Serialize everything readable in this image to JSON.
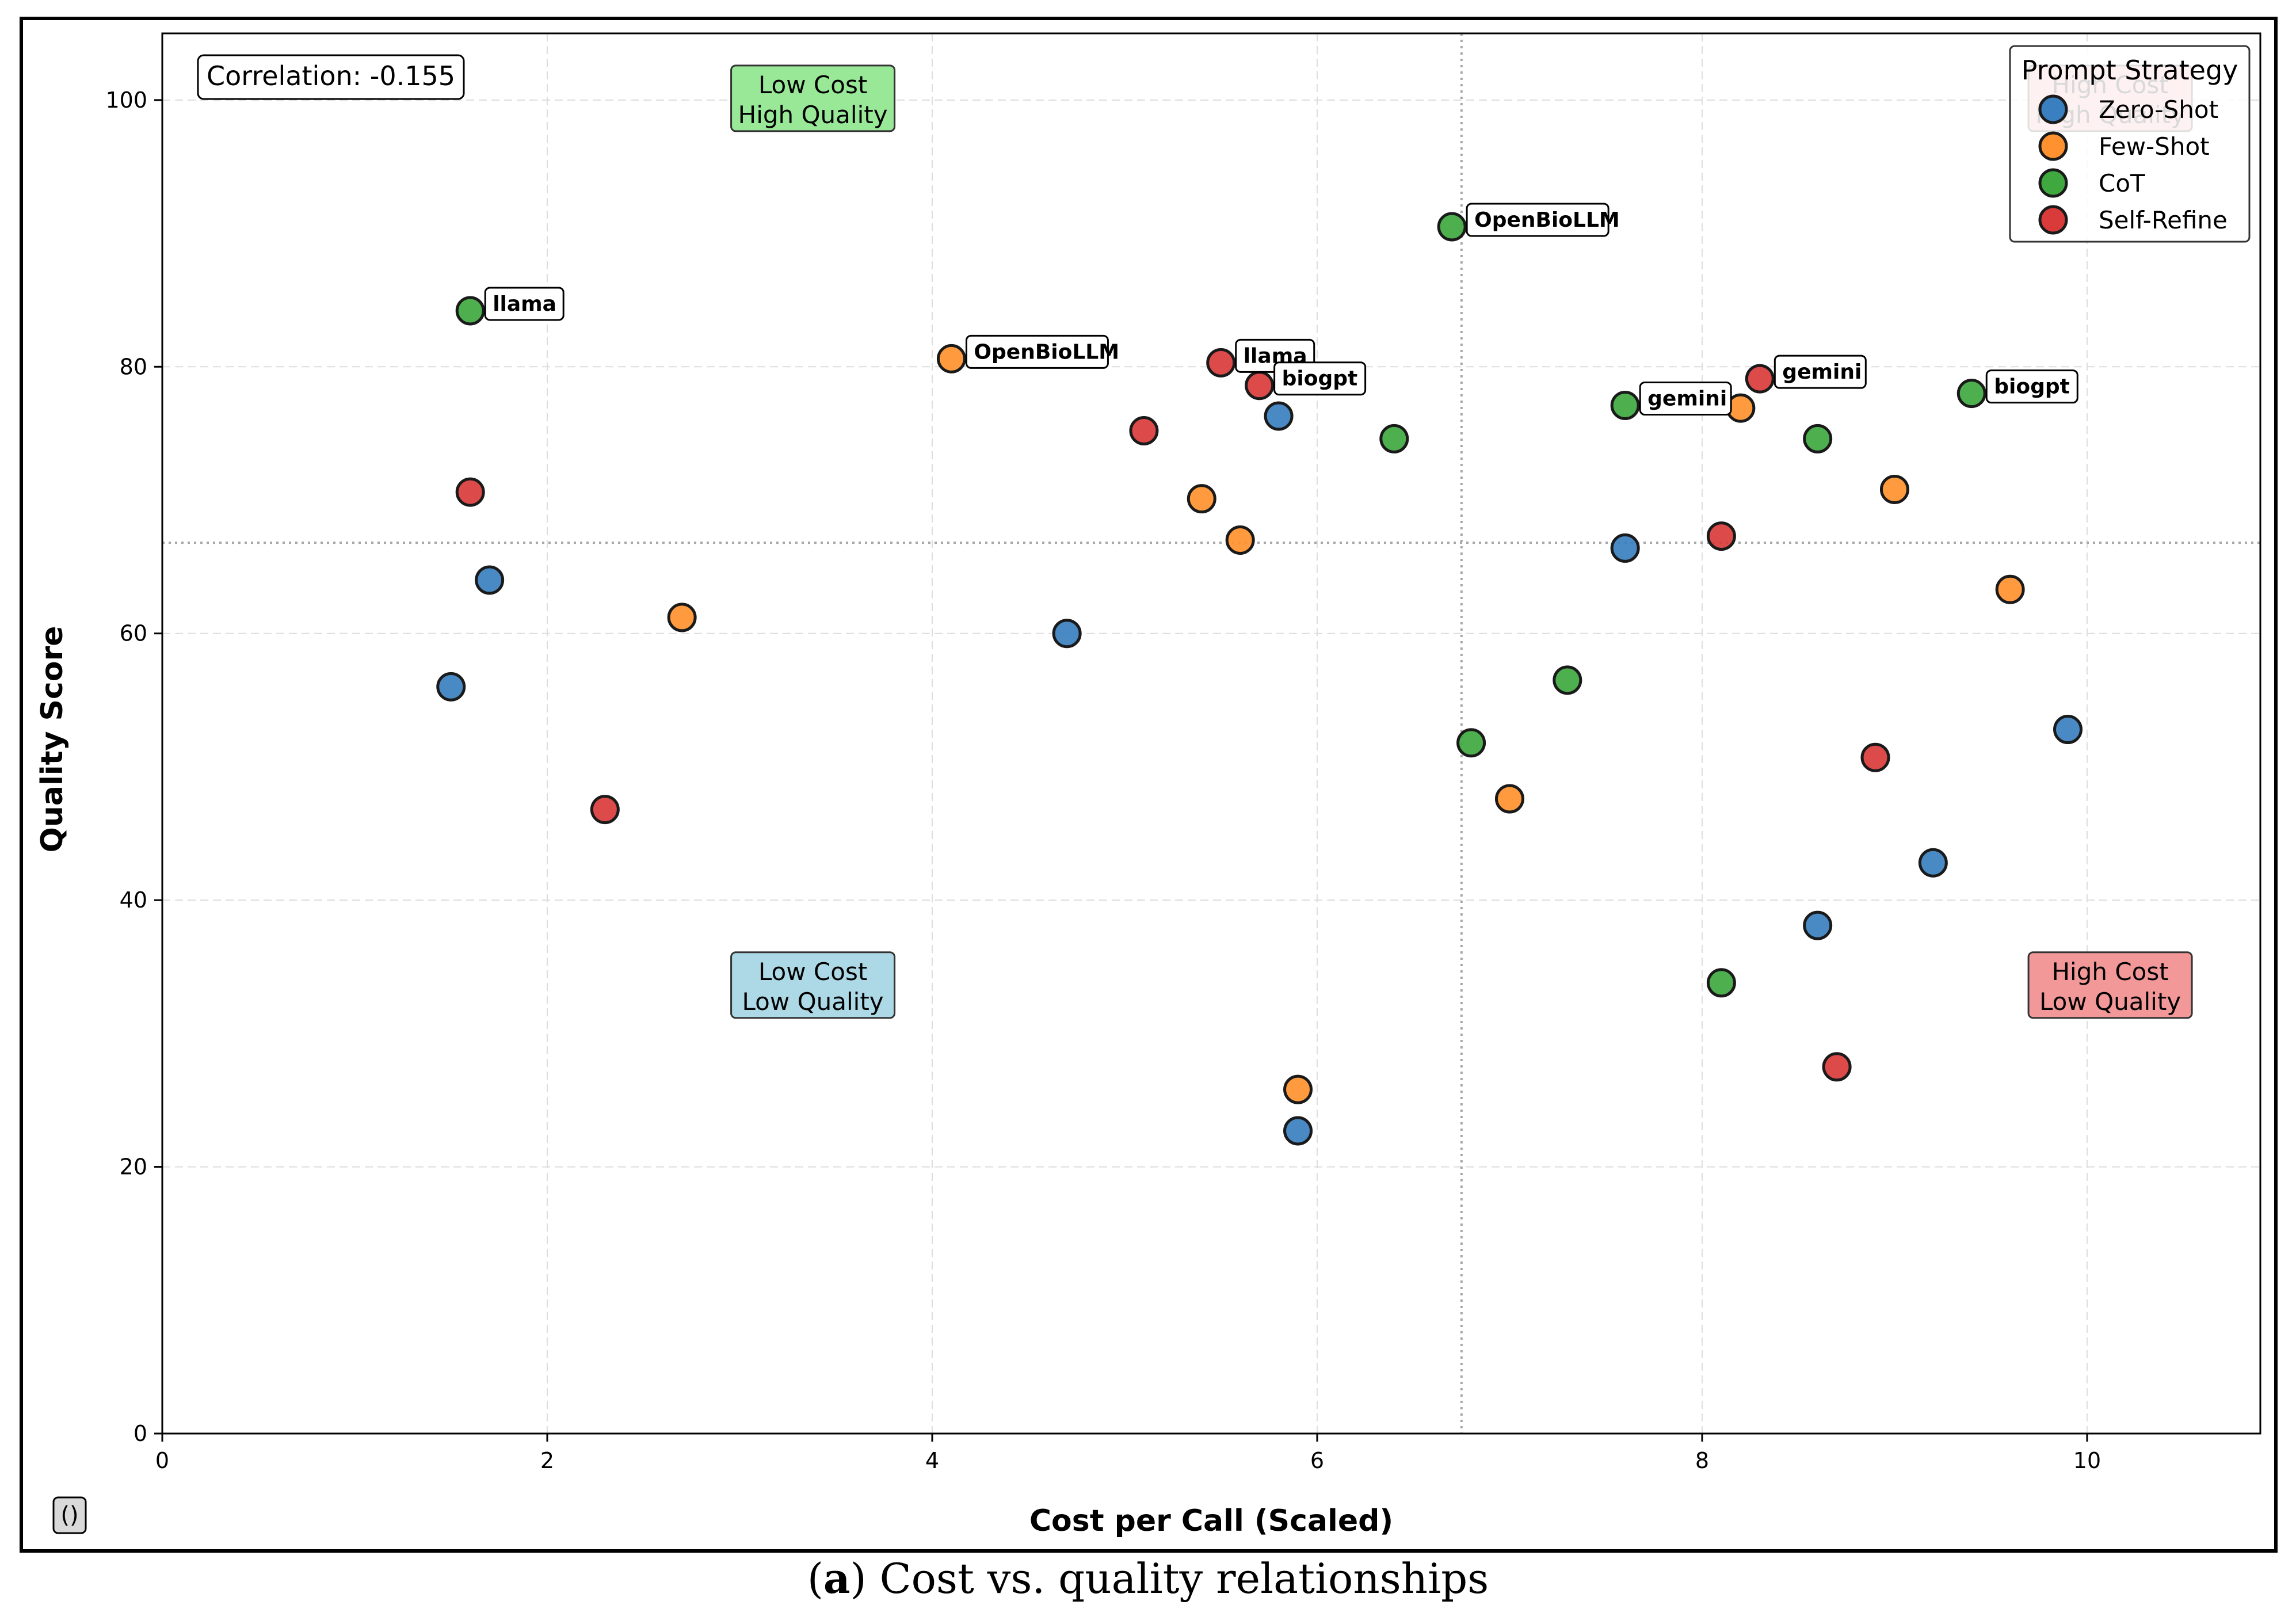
{
  "chart_data": {
    "type": "scatter",
    "xlabel": "Cost per Call (Scaled)",
    "ylabel": "Quality Score",
    "xlim": [
      0,
      10.9
    ],
    "ylim": [
      0,
      105
    ],
    "x_ticks": [
      0,
      2,
      4,
      6,
      8,
      10
    ],
    "y_ticks": [
      0,
      20,
      40,
      60,
      80,
      100
    ],
    "x_tick_labels": [
      "0",
      "2",
      "4",
      "6",
      "8",
      "10"
    ],
    "y_tick_labels": [
      "0",
      "20",
      "40",
      "60",
      "80",
      "100"
    ],
    "grid": true,
    "correlation_label": "Correlation: -0.155",
    "reference_lines": {
      "x": 6.75,
      "y": 66.8
    },
    "quadrant_labels": [
      {
        "line1": "Low Cost",
        "line2": "High Quality",
        "x": 3.38,
        "y": 100,
        "color": "#98e898"
      },
      {
        "line1": "High Cost",
        "line2": "High Quality",
        "x": 10.12,
        "y": 100,
        "color": "#f4a0a0"
      },
      {
        "line1": "Low Cost",
        "line2": "Low Quality",
        "x": 3.38,
        "y": 33.5,
        "color": "#add8e6"
      },
      {
        "line1": "High Cost",
        "line2": "Low Quality",
        "x": 10.12,
        "y": 33.5,
        "color": "#f29898"
      }
    ],
    "legend": {
      "title": "Prompt Strategy",
      "position": "top-right",
      "entries": [
        {
          "name": "Zero-Shot",
          "color": "#3a7fbf"
        },
        {
          "name": "Few-Shot",
          "color": "#ff922e"
        },
        {
          "name": "CoT",
          "color": "#3fa83f"
        },
        {
          "name": "Self-Refine",
          "color": "#d93b3b"
        }
      ]
    },
    "series": [
      {
        "name": "Zero-Shot",
        "color": "#3a7fbf",
        "points": [
          {
            "x": 1.5,
            "y": 56.0
          },
          {
            "x": 1.7,
            "y": 64.0
          },
          {
            "x": 4.7,
            "y": 60.0
          },
          {
            "x": 5.8,
            "y": 76.3
          },
          {
            "x": 5.9,
            "y": 22.7
          },
          {
            "x": 7.6,
            "y": 66.4
          },
          {
            "x": 8.6,
            "y": 38.1
          },
          {
            "x": 9.2,
            "y": 42.8
          },
          {
            "x": 9.9,
            "y": 52.8
          }
        ]
      },
      {
        "name": "Few-Shot",
        "color": "#ff922e",
        "points": [
          {
            "x": 2.7,
            "y": 61.2
          },
          {
            "x": 4.1,
            "y": 80.6,
            "label": "OpenBioLLM"
          },
          {
            "x": 5.4,
            "y": 70.1
          },
          {
            "x": 5.6,
            "y": 67.0
          },
          {
            "x": 5.9,
            "y": 25.8
          },
          {
            "x": 7.0,
            "y": 47.6
          },
          {
            "x": 8.2,
            "y": 76.9
          },
          {
            "x": 9.0,
            "y": 70.8
          },
          {
            "x": 9.6,
            "y": 63.3
          }
        ]
      },
      {
        "name": "CoT",
        "color": "#3fa83f",
        "points": [
          {
            "x": 1.6,
            "y": 84.2,
            "label": "llama"
          },
          {
            "x": 6.4,
            "y": 74.6
          },
          {
            "x": 6.7,
            "y": 90.5,
            "label": "OpenBioLLM"
          },
          {
            "x": 6.8,
            "y": 51.8
          },
          {
            "x": 7.3,
            "y": 56.5
          },
          {
            "x": 7.6,
            "y": 77.1,
            "label": "gemini"
          },
          {
            "x": 8.1,
            "y": 33.8
          },
          {
            "x": 8.6,
            "y": 74.6
          },
          {
            "x": 9.4,
            "y": 78.0,
            "label": "biogpt"
          }
        ]
      },
      {
        "name": "Self-Refine",
        "color": "#d93b3b",
        "points": [
          {
            "x": 1.6,
            "y": 70.6
          },
          {
            "x": 2.3,
            "y": 46.8
          },
          {
            "x": 5.1,
            "y": 75.2
          },
          {
            "x": 5.5,
            "y": 80.3,
            "label": "llama"
          },
          {
            "x": 5.7,
            "y": 78.6,
            "label": "biogpt"
          },
          {
            "x": 8.1,
            "y": 67.3
          },
          {
            "x": 8.3,
            "y": 79.1,
            "label": "gemini"
          },
          {
            "x": 8.7,
            "y": 27.5
          },
          {
            "x": 8.9,
            "y": 50.7
          }
        ]
      }
    ]
  },
  "corner_badge": "()",
  "caption": {
    "label": "a",
    "text": "Cost vs. quality relationships"
  }
}
